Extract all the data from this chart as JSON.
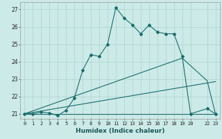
{
  "title": "",
  "xlabel": "Humidex (Indice chaleur)",
  "ylabel": "",
  "bg_color": "#cceae7",
  "grid_color": "#b0d8d4",
  "line_color": "#1a6b6b",
  "ylim": [
    20.7,
    27.4
  ],
  "xlim": [
    -0.5,
    23.5
  ],
  "yticks": [
    21,
    22,
    23,
    24,
    25,
    26,
    27
  ],
  "xticks": [
    0,
    1,
    2,
    3,
    4,
    5,
    6,
    7,
    8,
    9,
    10,
    11,
    12,
    13,
    14,
    15,
    16,
    17,
    18,
    19,
    20,
    22,
    23
  ],
  "xtick_labels": [
    "0",
    "1",
    "2",
    "3",
    "4",
    "5",
    "6",
    "7",
    "8",
    "9",
    "10",
    "11",
    "12",
    "13",
    "14",
    "15",
    "16",
    "17",
    "18",
    "19",
    "20",
    "22",
    "23"
  ],
  "line1_x": [
    0,
    1,
    2,
    3,
    4,
    5,
    6,
    7,
    8,
    9,
    10,
    11,
    12,
    13,
    14,
    15,
    16,
    17,
    18,
    19,
    20,
    22,
    23
  ],
  "line1_y": [
    21.0,
    21.0,
    21.1,
    21.05,
    20.9,
    21.2,
    21.9,
    23.5,
    24.4,
    24.3,
    25.0,
    27.1,
    26.5,
    26.1,
    25.6,
    26.1,
    25.7,
    25.6,
    25.6,
    24.3,
    21.0,
    21.3,
    21.0
  ],
  "line2_x": [
    0,
    19,
    22,
    23
  ],
  "line2_y": [
    21.0,
    24.2,
    22.9,
    21.0
  ],
  "line3_x": [
    0,
    20,
    23
  ],
  "line3_y": [
    21.0,
    21.0,
    21.0
  ],
  "line4_x": [
    0,
    23
  ],
  "line4_y": [
    21.0,
    22.85
  ]
}
